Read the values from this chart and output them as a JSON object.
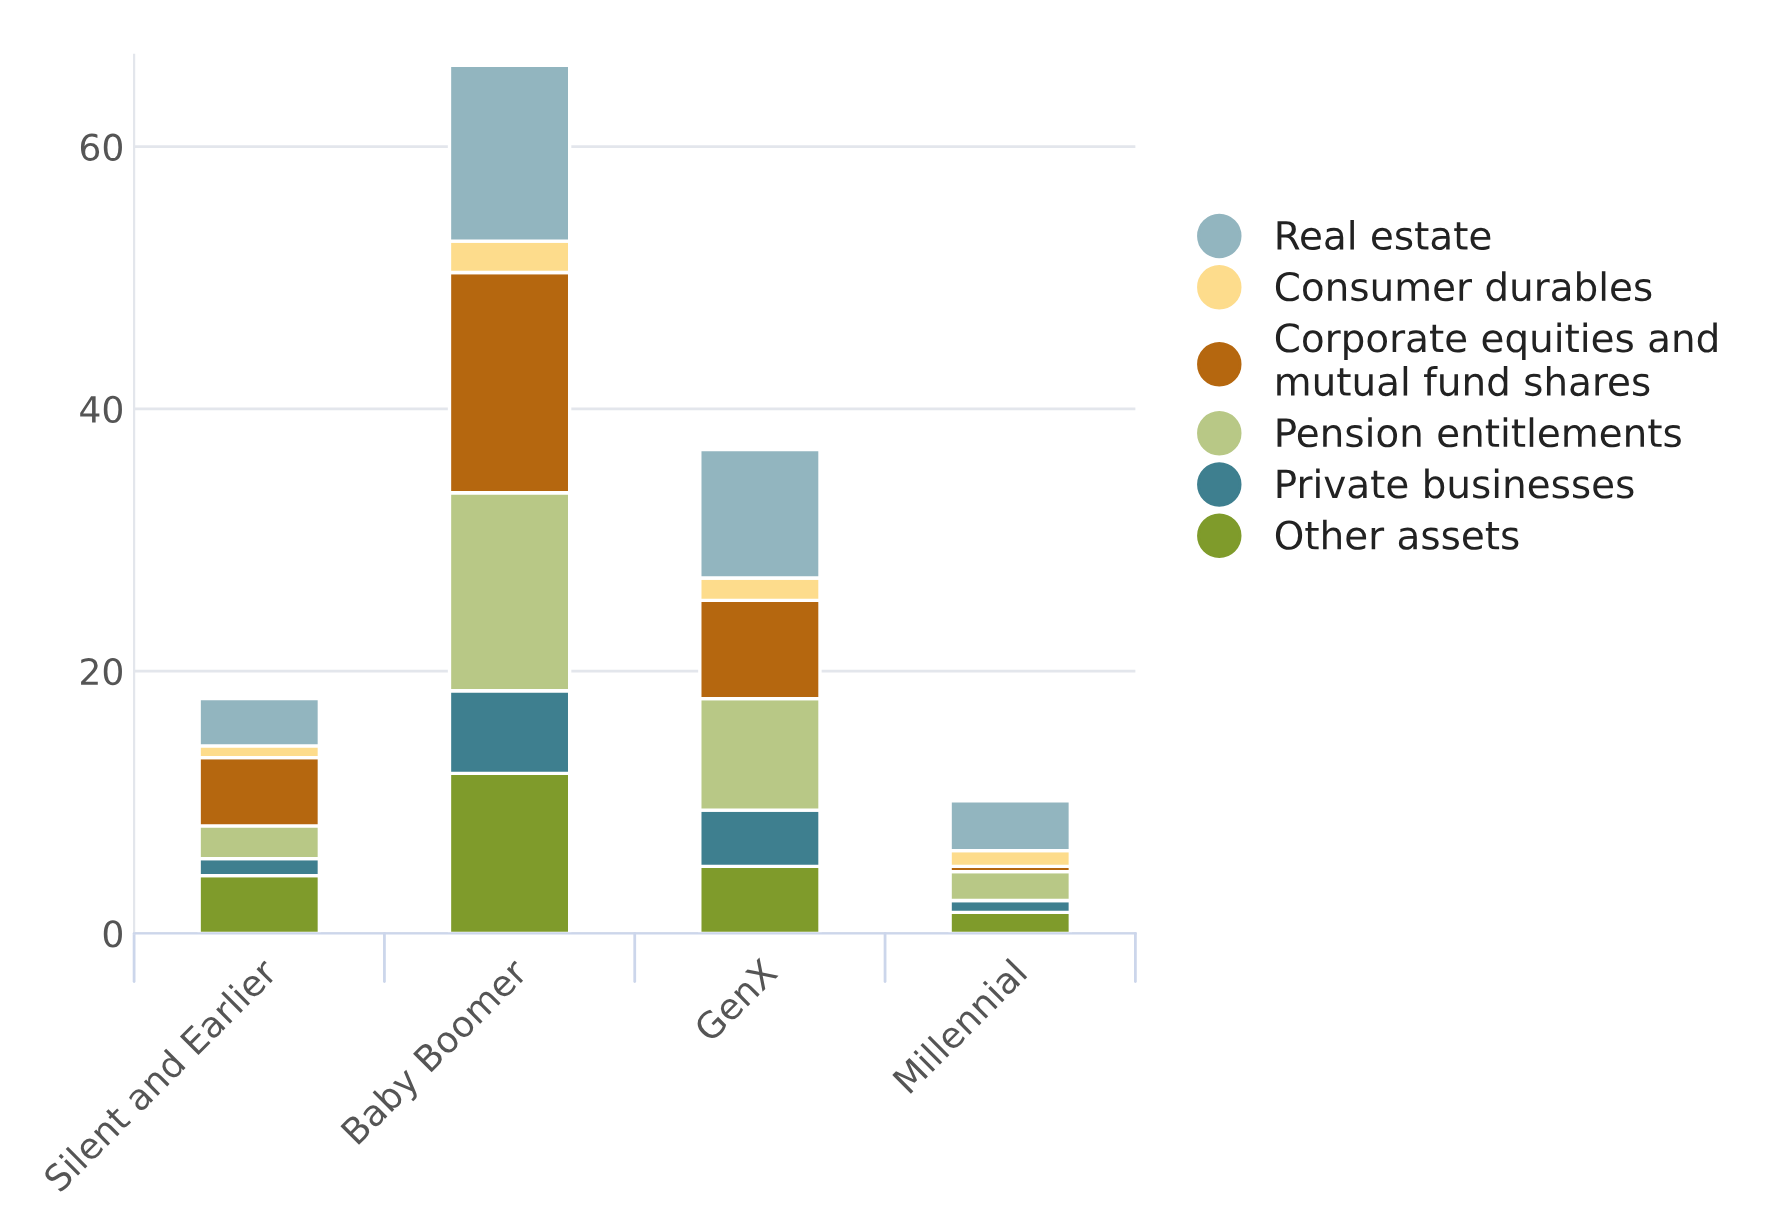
{
  "chart_data": {
    "type": "bar",
    "stacked": true,
    "categories": [
      "Silent and Earlier",
      "Baby Boomer",
      "GenX",
      "Millennial"
    ],
    "series": [
      {
        "name": "Other assets",
        "color": "#7f9b2b",
        "values": [
          4.4,
          12.2,
          5.1,
          1.6
        ]
      },
      {
        "name": "Private businesses",
        "color": "#3e7f8f",
        "values": [
          1.3,
          6.3,
          4.3,
          0.9
        ]
      },
      {
        "name": "Pension entitlements",
        "color": "#b8c886",
        "values": [
          2.5,
          15.1,
          8.5,
          2.2
        ]
      },
      {
        "name": "Corporate equities and\nmutual fund shares",
        "color": "#b5670f",
        "values": [
          5.2,
          16.8,
          7.5,
          0.4
        ]
      },
      {
        "name": "Consumer durables",
        "color": "#fddc8c",
        "values": [
          0.9,
          2.4,
          1.7,
          1.2
        ]
      },
      {
        "name": "Real estate",
        "color": "#92b5bf",
        "values": [
          3.6,
          13.4,
          9.8,
          3.8
        ]
      }
    ],
    "ylim": [
      0,
      67
    ],
    "yticks": [
      0,
      20,
      40,
      60
    ],
    "grid": "y",
    "legend": "right",
    "marker": "circle"
  }
}
